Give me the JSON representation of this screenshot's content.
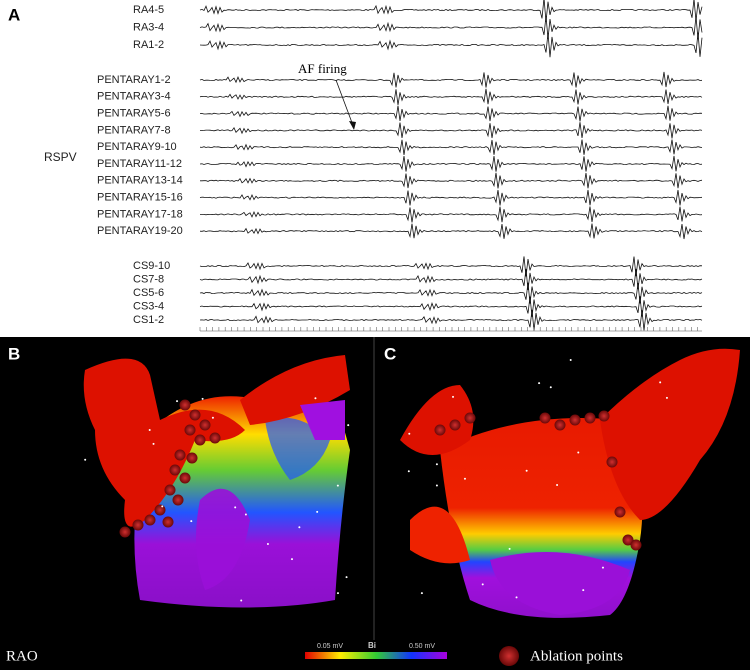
{
  "panel_a": {
    "label": "A",
    "channels_ra": [
      "RA4-5",
      "RA3-4",
      "RA1-2"
    ],
    "channels_pentaray": [
      "PENTARAY1-2",
      "PENTARAY3-4",
      "PENTARAY5-6",
      "PENTARAY7-8",
      "PENTARAY9-10",
      "PENTARAY11-12",
      "PENTARAY13-14",
      "PENTARAY15-16",
      "PENTARAY17-18",
      "PENTARAY19-20"
    ],
    "channels_cs": [
      "CS9-10",
      "CS7-8",
      "CS5-6",
      "CS3-4",
      "CS1-2"
    ],
    "region": "RSPV",
    "annotation": "AF firing"
  },
  "panel_b": {
    "label": "B",
    "view": "RAO"
  },
  "panel_c": {
    "label": "C"
  },
  "legend": {
    "scale_min": "0.05 mV",
    "scale_name": "Bi",
    "scale_max": "0.50 mV",
    "marker": "Ablation points"
  }
}
